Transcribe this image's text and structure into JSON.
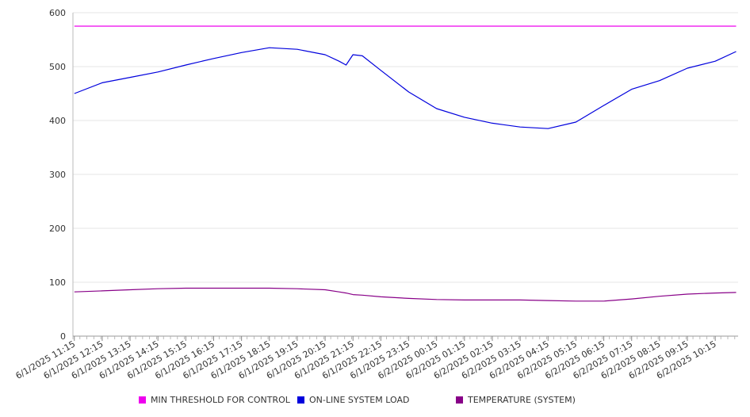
{
  "chart_data": {
    "type": "line",
    "title": "",
    "xlabel": "",
    "ylabel": "",
    "ylim": [
      0,
      600
    ],
    "yticks": [
      "0",
      "100",
      "200",
      "300",
      "400",
      "500",
      "600"
    ],
    "xticks": [
      "6/1/2025 11:15",
      "6/1/2025 12:15",
      "6/1/2025 13:15",
      "6/1/2025 14:15",
      "6/1/2025 15:15",
      "6/1/2025 16:15",
      "6/1/2025 17:15",
      "6/1/2025 18:15",
      "6/1/2025 19:15",
      "6/1/2025 20:15",
      "6/1/2025 21:15",
      "6/1/2025 22:15",
      "6/1/2025 23:15",
      "6/2/2025 00:15",
      "6/2/2025 01:15",
      "6/2/2025 02:15",
      "6/2/2025 03:15",
      "6/2/2025 04:15",
      "6/2/2025 05:15",
      "6/2/2025 06:15",
      "6/2/2025 07:15",
      "6/2/2025 08:15",
      "6/2/2025 09:15",
      "6/2/2025 10:15"
    ],
    "x": [
      "6/1/2025 11:15",
      "6/1/2025 12:15",
      "6/1/2025 13:15",
      "6/1/2025 14:15",
      "6/1/2025 15:15",
      "6/1/2025 16:15",
      "6/1/2025 17:15",
      "6/1/2025 18:15",
      "6/1/2025 19:15",
      "6/1/2025 20:15",
      "6/1/2025 20:45",
      "6/1/2025 21:00",
      "6/1/2025 21:15",
      "6/1/2025 21:35",
      "6/1/2025 22:15",
      "6/1/2025 23:15",
      "6/2/2025 00:15",
      "6/2/2025 01:15",
      "6/2/2025 02:15",
      "6/2/2025 03:15",
      "6/2/2025 04:15",
      "6/2/2025 05:15",
      "6/2/2025 06:15",
      "6/2/2025 07:15",
      "6/2/2025 08:15",
      "6/2/2025 09:15",
      "6/2/2025 10:15",
      "6/2/2025 11:00"
    ],
    "grid": true,
    "legend_position": "bottom",
    "series": [
      {
        "name": "MIN THRESHOLD FOR CONTROL",
        "color": "#ee00ee",
        "values": [
          575,
          575,
          575,
          575,
          575,
          575,
          575,
          575,
          575,
          575,
          575,
          575,
          575,
          575,
          575,
          575,
          575,
          575,
          575,
          575,
          575,
          575,
          575,
          575,
          575,
          575,
          575,
          575
        ]
      },
      {
        "name": "ON-LINE SYSTEM LOAD",
        "color": "#0000dd",
        "values": [
          450,
          470,
          480,
          490,
          503,
          515,
          526,
          535,
          532,
          522,
          510,
          503,
          522,
          520,
          493,
          453,
          422,
          406,
          395,
          388,
          385,
          397,
          428,
          458,
          474,
          497,
          510,
          528
        ]
      },
      {
        "name": "TEMPERATURE (SYSTEM)",
        "color": "#880088",
        "values": [
          82,
          84,
          86,
          88,
          89,
          89,
          89,
          89,
          88,
          86,
          82,
          80,
          77,
          76,
          73,
          70,
          68,
          67,
          67,
          67,
          66,
          65,
          65,
          69,
          74,
          78,
          80,
          81
        ]
      }
    ]
  }
}
